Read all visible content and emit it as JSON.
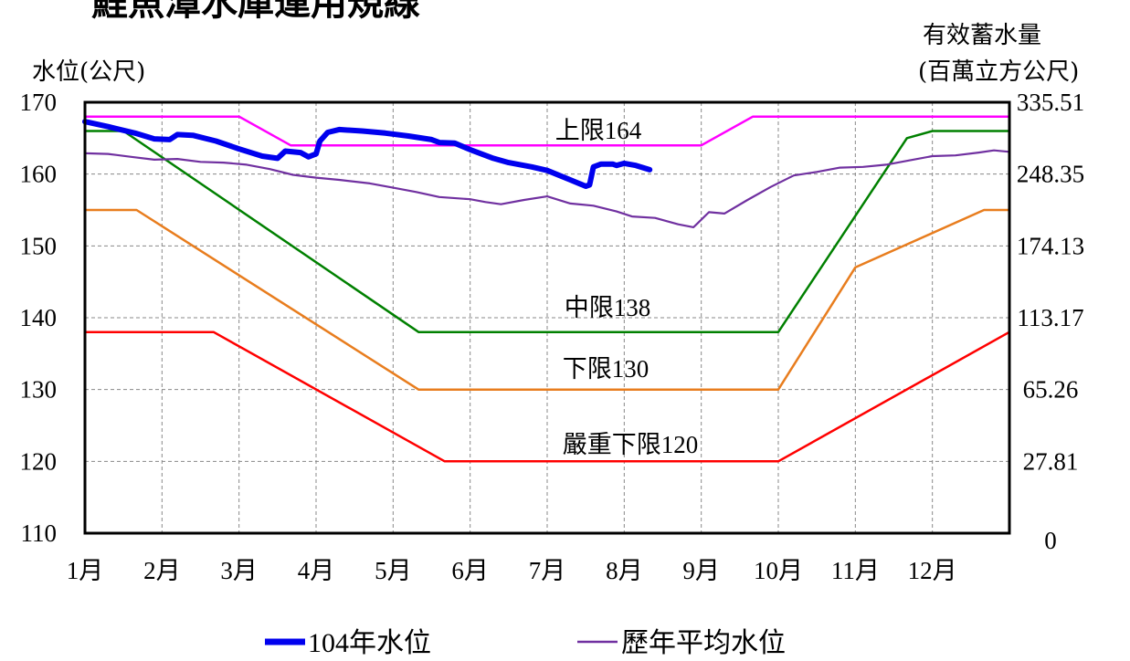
{
  "title_fragment": "鯉魚潭水庫運用規線",
  "chart_data": {
    "type": "line",
    "left_axis": {
      "title": "水位(公尺)",
      "ticks": [
        170,
        160,
        150,
        140,
        130,
        120,
        110
      ],
      "ylim": [
        110,
        170
      ]
    },
    "right_axis": {
      "title_line1": "有效蓄水量",
      "title_line2": "(百萬立方公尺)",
      "ticks": [
        "335.51",
        "248.35",
        "174.13",
        "113.17",
        "65.26",
        "27.81",
        "0"
      ]
    },
    "xlim": [
      1,
      13
    ],
    "grid": true,
    "x_tick_labels": [
      "1月",
      "2月",
      "3月",
      "4月",
      "5月",
      "6月",
      "7月",
      "8月",
      "9月",
      "10月",
      "11月",
      "12月"
    ],
    "legend_position": "bottom",
    "rule_curves": [
      {
        "name": "上限164",
        "color": "#ff00ff",
        "points": [
          [
            1,
            168
          ],
          [
            3,
            168
          ],
          [
            3.67,
            164
          ],
          [
            9,
            164
          ],
          [
            9.67,
            168
          ],
          [
            13,
            168
          ]
        ]
      },
      {
        "name": "中限138",
        "color": "#008000",
        "points": [
          [
            1,
            166
          ],
          [
            1.5,
            166
          ],
          [
            5.33,
            138
          ],
          [
            10,
            138
          ],
          [
            11.67,
            165
          ],
          [
            12,
            166
          ],
          [
            13,
            166
          ]
        ]
      },
      {
        "name": "下限130",
        "color": "#e87d1e",
        "points": [
          [
            1,
            155
          ],
          [
            1.67,
            155
          ],
          [
            5.33,
            130
          ],
          [
            10,
            130
          ],
          [
            11,
            147
          ],
          [
            12.67,
            155
          ],
          [
            13,
            155
          ]
        ]
      },
      {
        "name": "嚴重下限120",
        "color": "#ff0000",
        "points": [
          [
            1,
            138
          ],
          [
            2.67,
            138
          ],
          [
            5.67,
            120
          ],
          [
            10,
            120
          ],
          [
            13,
            138
          ]
        ]
      }
    ],
    "series": [
      {
        "name": "104年水位",
        "color": "#0000ee",
        "points": [
          [
            1,
            167.3
          ],
          [
            1.3,
            166.6
          ],
          [
            1.65,
            165.7
          ],
          [
            1.9,
            164.9
          ],
          [
            2.1,
            164.8
          ],
          [
            2.2,
            165.5
          ],
          [
            2.4,
            165.4
          ],
          [
            2.7,
            164.6
          ],
          [
            3,
            163.5
          ],
          [
            3.3,
            162.5
          ],
          [
            3.5,
            162.2
          ],
          [
            3.6,
            163.2
          ],
          [
            3.8,
            163.0
          ],
          [
            3.9,
            162.4
          ],
          [
            4.0,
            162.8
          ],
          [
            4.05,
            164.6
          ],
          [
            4.15,
            165.8
          ],
          [
            4.3,
            166.2
          ],
          [
            4.6,
            166.0
          ],
          [
            4.9,
            165.7
          ],
          [
            5.2,
            165.3
          ],
          [
            5.5,
            164.8
          ],
          [
            5.6,
            164.4
          ],
          [
            5.8,
            164.3
          ],
          [
            6,
            163.4
          ],
          [
            6.3,
            162.2
          ],
          [
            6.5,
            161.6
          ],
          [
            6.8,
            161.0
          ],
          [
            7,
            160.5
          ],
          [
            7.3,
            159.2
          ],
          [
            7.5,
            158.3
          ],
          [
            7.55,
            158.5
          ],
          [
            7.6,
            161.0
          ],
          [
            7.7,
            161.4
          ],
          [
            7.85,
            161.4
          ],
          [
            7.9,
            161.2
          ],
          [
            8.0,
            161.5
          ],
          [
            8.15,
            161.2
          ],
          [
            8.33,
            160.6
          ]
        ]
      },
      {
        "name": "歷年平均水位",
        "color": "#7030a0",
        "points": [
          [
            1,
            162.9
          ],
          [
            1.3,
            162.8
          ],
          [
            1.6,
            162.4
          ],
          [
            1.9,
            162.0
          ],
          [
            2.2,
            162.1
          ],
          [
            2.5,
            161.7
          ],
          [
            2.8,
            161.6
          ],
          [
            3.1,
            161.3
          ],
          [
            3.4,
            160.7
          ],
          [
            3.7,
            159.9
          ],
          [
            4,
            159.5
          ],
          [
            4.3,
            159.2
          ],
          [
            4.7,
            158.7
          ],
          [
            5,
            158.1
          ],
          [
            5.3,
            157.5
          ],
          [
            5.6,
            156.8
          ],
          [
            6,
            156.5
          ],
          [
            6.2,
            156.1
          ],
          [
            6.4,
            155.8
          ],
          [
            6.7,
            156.4
          ],
          [
            7,
            156.9
          ],
          [
            7.3,
            155.9
          ],
          [
            7.6,
            155.6
          ],
          [
            7.9,
            154.8
          ],
          [
            8.1,
            154.1
          ],
          [
            8.4,
            153.9
          ],
          [
            8.7,
            153.0
          ],
          [
            8.9,
            152.6
          ],
          [
            9.1,
            154.7
          ],
          [
            9.3,
            154.5
          ],
          [
            9.6,
            156.4
          ],
          [
            9.9,
            158.2
          ],
          [
            10.2,
            159.8
          ],
          [
            10.5,
            160.3
          ],
          [
            10.8,
            160.9
          ],
          [
            11.1,
            161.0
          ],
          [
            11.4,
            161.3
          ],
          [
            11.7,
            161.9
          ],
          [
            12,
            162.5
          ],
          [
            12.3,
            162.6
          ],
          [
            12.6,
            163.0
          ],
          [
            12.8,
            163.3
          ],
          [
            13,
            163.1
          ]
        ]
      }
    ]
  }
}
